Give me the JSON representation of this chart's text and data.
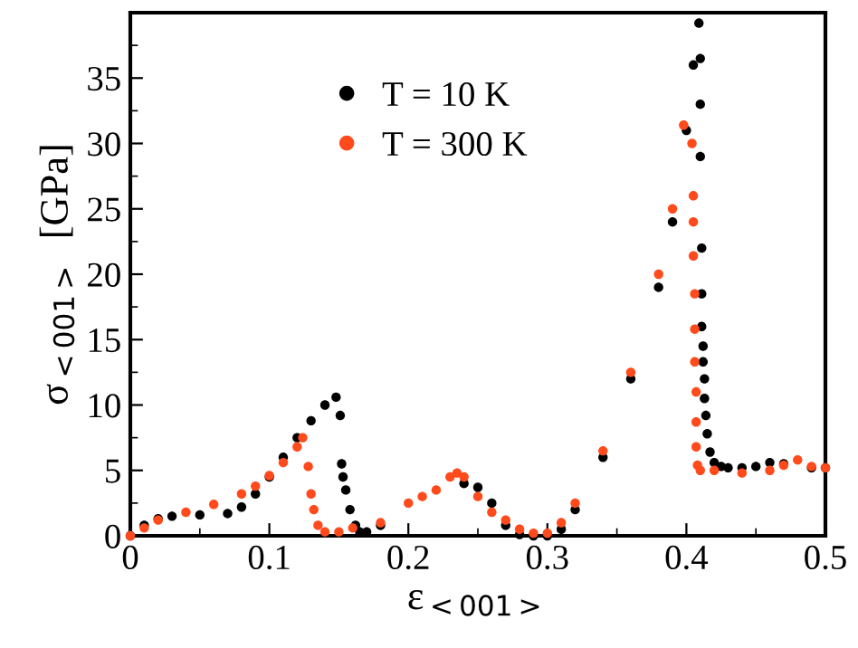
{
  "chart_data": {
    "type": "scatter",
    "xlabel": "ε$_{<001>}$",
    "ylabel": "σ$_{<001>}$  [GPa]",
    "xlim": [
      0,
      0.5
    ],
    "ylim": [
      0,
      40
    ],
    "xticks": [
      0,
      0.1,
      0.2,
      0.3,
      0.4,
      0.5
    ],
    "yticks": [
      0,
      5,
      10,
      15,
      20,
      25,
      30,
      35
    ],
    "grid": false,
    "legend": "top left",
    "marker": "circle",
    "series": [
      {
        "name": "T = 10 K",
        "color": "#000000",
        "x": [
          0,
          0.01,
          0.02,
          0.03,
          0.05,
          0.07,
          0.08,
          0.09,
          0.1,
          0.11,
          0.12,
          0.13,
          0.14,
          0.148,
          0.151,
          0.152,
          0.153,
          0.155,
          0.158,
          0.162,
          0.165,
          0.17,
          0.18,
          0.2,
          0.22,
          0.24,
          0.25,
          0.26,
          0.27,
          0.28,
          0.29,
          0.3,
          0.31,
          0.32,
          0.34,
          0.36,
          0.38,
          0.39,
          0.4,
          0.405,
          0.409,
          0.41,
          0.41,
          0.41,
          0.411,
          0.411,
          0.411,
          0.412,
          0.412,
          0.413,
          0.413,
          0.414,
          0.415,
          0.417,
          0.42,
          0.425,
          0.43,
          0.44,
          0.45,
          0.46,
          0.47,
          0.48,
          0.49,
          0.5
        ],
        "values": [
          0,
          0.8,
          1.3,
          1.5,
          1.6,
          1.7,
          2.2,
          3.2,
          4.5,
          6.0,
          7.5,
          8.8,
          10.0,
          10.6,
          9.2,
          5.5,
          4.5,
          3.5,
          2,
          0.8,
          0.3,
          0.3,
          0.8,
          null,
          null,
          4,
          3.7,
          2.5,
          0.8,
          0.1,
          0,
          0,
          0.5,
          2,
          6,
          12,
          19,
          24,
          31,
          36,
          39.2,
          36.5,
          33,
          29,
          22,
          18.5,
          16,
          14.5,
          13.3,
          12,
          10.5,
          9.2,
          7.8,
          6.4,
          5.6,
          5.3,
          5.2,
          5.2,
          5.3,
          5.6,
          5.5,
          null,
          5.2,
          5.2
        ]
      },
      {
        "name": "T = 300 K",
        "color": "#ff4a1c",
        "x": [
          0,
          0.01,
          0.02,
          0.04,
          0.06,
          0.08,
          0.09,
          0.1,
          0.11,
          0.12,
          0.124,
          0.128,
          0.13,
          0.132,
          0.135,
          0.14,
          0.15,
          0.16,
          0.18,
          0.2,
          0.21,
          0.22,
          0.23,
          0.235,
          0.24,
          0.25,
          0.26,
          0.27,
          0.28,
          0.29,
          0.3,
          0.31,
          0.32,
          0.34,
          0.36,
          0.38,
          0.39,
          0.398,
          0.404,
          0.405,
          0.405,
          0.405,
          0.406,
          0.406,
          0.406,
          0.407,
          0.407,
          0.407,
          0.408,
          0.41,
          0.42,
          0.44,
          0.46,
          0.47,
          0.48,
          0.49,
          0.5
        ],
        "values": [
          0,
          0.6,
          1.2,
          1.8,
          2.4,
          3.2,
          3.8,
          4.6,
          5.6,
          6.8,
          7.5,
          5.3,
          3.2,
          2,
          0.8,
          0.3,
          0.3,
          0.6,
          1.0,
          2.5,
          3.0,
          3.5,
          4.5,
          4.8,
          4.5,
          3,
          1.8,
          1.2,
          0.5,
          0.2,
          0.2,
          1.0,
          2.5,
          6.5,
          12.5,
          20,
          25,
          31.4,
          30,
          26,
          24,
          21.4,
          18.5,
          15.8,
          13.3,
          11,
          8.7,
          6.8,
          5.4,
          5.0,
          5.0,
          4.8,
          5.0,
          5.4,
          5.8,
          5.3,
          5.2
        ]
      }
    ]
  }
}
